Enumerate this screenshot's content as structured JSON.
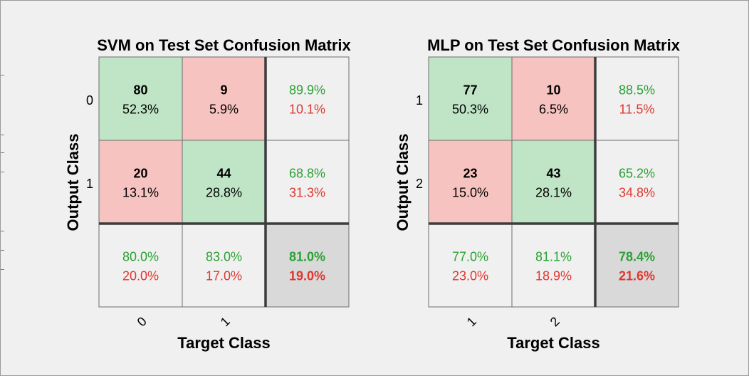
{
  "colors": {
    "correct_fill": "#bfe5c6",
    "wrong_fill": "#f7c3c0",
    "summary_fill": "#f0f0f0",
    "total_fill": "#d9d9d9",
    "green_text": "#2aa132",
    "red_text": "#e0362f",
    "black_text": "#000000"
  },
  "chart_data": [
    {
      "type": "heatmap",
      "title": "SVM on Test Set Confusion Matrix",
      "xlabel": "Target Class",
      "ylabel": "Output Class",
      "row_labels": [
        "0",
        "1"
      ],
      "col_labels": [
        "0",
        "1"
      ],
      "counts": [
        [
          80,
          9
        ],
        [
          20,
          44
        ]
      ],
      "percents": [
        [
          "52.3%",
          "5.9%"
        ],
        [
          "13.1%",
          "28.8%"
        ]
      ],
      "row_summary": [
        [
          "89.9%",
          "10.1%"
        ],
        [
          "68.8%",
          "31.3%"
        ]
      ],
      "col_summary": [
        [
          "80.0%",
          "20.0%"
        ],
        [
          "83.0%",
          "17.0%"
        ]
      ],
      "total": [
        "81.0%",
        "19.0%"
      ]
    },
    {
      "type": "heatmap",
      "title": "MLP on Test Set Confusion Matrix",
      "xlabel": "Target Class",
      "ylabel": "Output Class",
      "row_labels": [
        "1",
        "2"
      ],
      "col_labels": [
        "1",
        "2"
      ],
      "counts": [
        [
          77,
          10
        ],
        [
          23,
          43
        ]
      ],
      "percents": [
        [
          "50.3%",
          "6.5%"
        ],
        [
          "15.0%",
          "28.1%"
        ]
      ],
      "row_summary": [
        [
          "88.5%",
          "11.5%"
        ],
        [
          "65.2%",
          "34.8%"
        ]
      ],
      "col_summary": [
        [
          "77.0%",
          "23.0%"
        ],
        [
          "81.1%",
          "18.9%"
        ]
      ],
      "total": [
        "78.4%",
        "21.6%"
      ]
    }
  ]
}
